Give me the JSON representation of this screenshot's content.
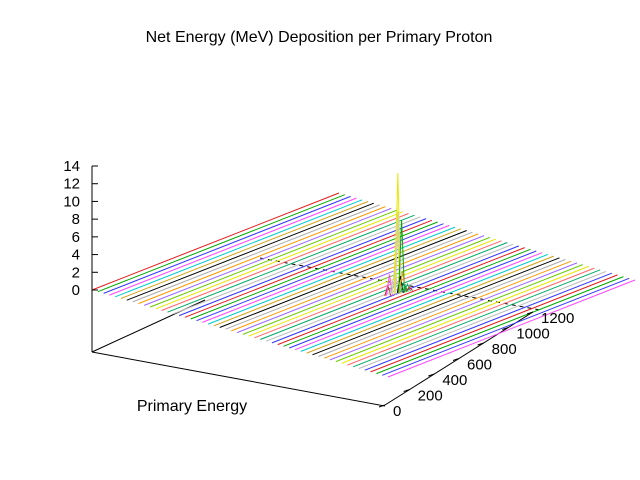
{
  "chart_data": {
    "type": "line",
    "title": "Net Energy (MeV) Deposition per Primary Proton",
    "xlabel": "Primary Energy",
    "ylabel": "",
    "zlabel": "",
    "view": "3d-perspective",
    "grid": false,
    "legend": "none",
    "x_ticks": [
      "0",
      "200",
      "400",
      "600",
      "800",
      "1000",
      "1200"
    ],
    "xlim": [
      0,
      1200
    ],
    "z_ticks": [
      "0",
      "2",
      "4",
      "6",
      "8",
      "10",
      "12",
      "14"
    ],
    "zlim": [
      0,
      14
    ],
    "series_colors": [
      "#e41a1c",
      "#00aa00",
      "#3333ff",
      "#ff44ff",
      "#00cccc",
      "#d4a017",
      "#000000",
      "#aaaaaa",
      "#ff9900",
      "#9966ff",
      "#66cc00",
      "#e8e800",
      "#ff6666",
      "#00aa66",
      "#bbbbbb",
      "#3333ff"
    ],
    "peaks": [
      {
        "x": 190,
        "z": 1.2,
        "color": "#e41a1c"
      },
      {
        "x": 210,
        "z": 2.4,
        "color": "#ff44ff"
      },
      {
        "x": 245,
        "z": 1.6,
        "color": "#bbbbbb"
      },
      {
        "x": 275,
        "z": 3.6,
        "color": "#cccccc"
      },
      {
        "x": 300,
        "z": 9.9,
        "color": "#e8e800"
      },
      {
        "x": 310,
        "z": 13.6,
        "color": "#e8e800"
      },
      {
        "x": 315,
        "z": 9.2,
        "color": "#cccccc"
      },
      {
        "x": 340,
        "z": 1.9,
        "color": "#000000"
      },
      {
        "x": 355,
        "z": 8.2,
        "color": "#00aa00"
      },
      {
        "x": 365,
        "z": 2.4,
        "color": "#d4a017"
      },
      {
        "x": 380,
        "z": 1.0,
        "color": "#00aa66"
      },
      {
        "x": 400,
        "z": 0.6,
        "color": "#00aa00"
      },
      {
        "x": 425,
        "z": 0.8,
        "color": "#00aa66"
      },
      {
        "x": 450,
        "z": 0.4,
        "color": "#e41a1c"
      }
    ]
  }
}
